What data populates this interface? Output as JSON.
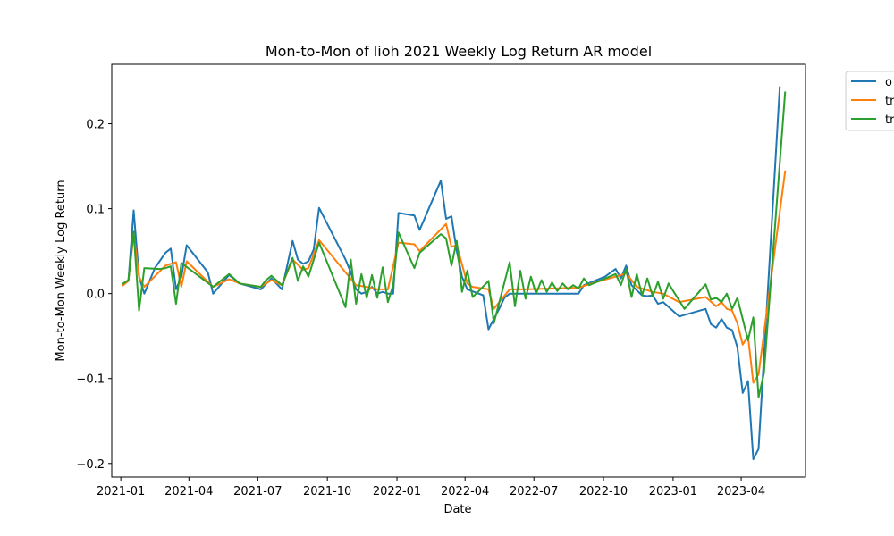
{
  "chart_data": {
    "type": "line",
    "title": "Mon-to-Mon of lioh 2021 Weekly Log Return AR model",
    "xlabel": "Date",
    "ylabel": "Mon-to-Mon Weekly Log Return",
    "x_ticks": [
      "2021-01",
      "2021-04",
      "2021-07",
      "2021-10",
      "2022-01",
      "2022-04",
      "2022-07",
      "2022-10",
      "2023-01",
      "2023-04"
    ],
    "y_ticks": [
      "−0.2",
      "−0.1",
      "0.0",
      "0.1",
      "0.2"
    ],
    "xlim": [
      "2020-12-20",
      "2023-06-25"
    ],
    "ylim": [
      -0.216,
      0.27
    ],
    "grid": false,
    "legend_position": "outside-top-right",
    "series": [
      {
        "name": "o",
        "color": "#1f77b4",
        "points": [
          [
            "2021-01-04",
            0.01
          ],
          [
            "2021-01-11",
            0.015
          ],
          [
            "2021-01-18",
            0.098
          ],
          [
            "2021-01-25",
            0.02
          ],
          [
            "2021-02-01",
            0.0
          ],
          [
            "2021-02-15",
            0.03
          ],
          [
            "2021-03-01",
            0.048
          ],
          [
            "2021-03-08",
            0.053
          ],
          [
            "2021-03-15",
            0.005
          ],
          [
            "2021-03-22",
            0.02
          ],
          [
            "2021-03-29",
            0.057
          ],
          [
            "2021-04-26",
            0.025
          ],
          [
            "2021-05-03",
            0.0
          ],
          [
            "2021-05-24",
            0.022
          ],
          [
            "2021-06-07",
            0.012
          ],
          [
            "2021-07-05",
            0.005
          ],
          [
            "2021-07-19",
            0.018
          ],
          [
            "2021-08-02",
            0.005
          ],
          [
            "2021-08-16",
            0.062
          ],
          [
            "2021-08-23",
            0.04
          ],
          [
            "2021-08-30",
            0.035
          ],
          [
            "2021-09-06",
            0.038
          ],
          [
            "2021-09-13",
            0.052
          ],
          [
            "2021-09-20",
            0.101
          ],
          [
            "2021-10-25",
            0.04
          ],
          [
            "2021-11-01",
            0.025
          ],
          [
            "2021-11-08",
            0.005
          ],
          [
            "2021-11-15",
            0.0
          ],
          [
            "2021-11-22",
            0.002
          ],
          [
            "2021-11-29",
            0.008
          ],
          [
            "2021-12-06",
            0.0
          ],
          [
            "2021-12-13",
            0.002
          ],
          [
            "2021-12-20",
            0.0
          ],
          [
            "2021-12-27",
            0.0
          ],
          [
            "2022-01-03",
            0.095
          ],
          [
            "2022-01-24",
            0.092
          ],
          [
            "2022-01-31",
            0.075
          ],
          [
            "2022-02-28",
            0.133
          ],
          [
            "2022-03-07",
            0.088
          ],
          [
            "2022-03-14",
            0.091
          ],
          [
            "2022-03-21",
            0.05
          ],
          [
            "2022-03-28",
            0.02
          ],
          [
            "2022-04-04",
            0.005
          ],
          [
            "2022-04-25",
            -0.002
          ],
          [
            "2022-05-02",
            -0.042
          ],
          [
            "2022-05-16",
            -0.018
          ],
          [
            "2022-05-23",
            -0.005
          ],
          [
            "2022-05-30",
            0.0
          ],
          [
            "2022-06-13",
            0.0
          ],
          [
            "2022-08-29",
            0.0
          ],
          [
            "2022-09-05",
            0.01
          ],
          [
            "2022-09-19",
            0.015
          ],
          [
            "2022-10-03",
            0.02
          ],
          [
            "2022-10-17",
            0.029
          ],
          [
            "2022-10-24",
            0.018
          ],
          [
            "2022-10-31",
            0.033
          ],
          [
            "2022-11-07",
            0.01
          ],
          [
            "2022-11-21",
            -0.002
          ],
          [
            "2022-11-28",
            -0.003
          ],
          [
            "2022-12-05",
            -0.002
          ],
          [
            "2022-12-12",
            -0.012
          ],
          [
            "2022-12-19",
            -0.01
          ],
          [
            "2023-01-09",
            -0.027
          ],
          [
            "2023-02-13",
            -0.018
          ],
          [
            "2023-02-20",
            -0.036
          ],
          [
            "2023-02-27",
            -0.04
          ],
          [
            "2023-03-06",
            -0.03
          ],
          [
            "2023-03-13",
            -0.04
          ],
          [
            "2023-03-20",
            -0.043
          ],
          [
            "2023-03-27",
            -0.063
          ],
          [
            "2023-04-03",
            -0.117
          ],
          [
            "2023-04-10",
            -0.103
          ],
          [
            "2023-04-17",
            -0.195
          ],
          [
            "2023-04-24",
            -0.183
          ],
          [
            "2023-05-22",
            0.243
          ]
        ]
      },
      {
        "name": "tr",
        "color": "#ff7f0e",
        "points": [
          [
            "2021-01-04",
            0.01
          ],
          [
            "2021-01-11",
            0.015
          ],
          [
            "2021-01-18",
            0.07
          ],
          [
            "2021-01-25",
            0.02
          ],
          [
            "2021-02-01",
            0.008
          ],
          [
            "2021-03-01",
            0.033
          ],
          [
            "2021-03-15",
            0.037
          ],
          [
            "2021-03-22",
            0.008
          ],
          [
            "2021-03-29",
            0.038
          ],
          [
            "2021-05-03",
            0.008
          ],
          [
            "2021-05-24",
            0.017
          ],
          [
            "2021-06-07",
            0.012
          ],
          [
            "2021-07-05",
            0.008
          ],
          [
            "2021-07-19",
            0.016
          ],
          [
            "2021-08-02",
            0.01
          ],
          [
            "2021-08-16",
            0.04
          ],
          [
            "2021-08-30",
            0.028
          ],
          [
            "2021-09-06",
            0.03
          ],
          [
            "2021-09-20",
            0.063
          ],
          [
            "2021-10-25",
            0.025
          ],
          [
            "2021-11-08",
            0.01
          ],
          [
            "2021-11-22",
            0.008
          ],
          [
            "2021-12-06",
            0.005
          ],
          [
            "2021-12-20",
            0.005
          ],
          [
            "2022-01-03",
            0.06
          ],
          [
            "2022-01-24",
            0.058
          ],
          [
            "2022-01-31",
            0.05
          ],
          [
            "2022-03-07",
            0.082
          ],
          [
            "2022-03-14",
            0.055
          ],
          [
            "2022-03-21",
            0.057
          ],
          [
            "2022-04-04",
            0.012
          ],
          [
            "2022-04-11",
            0.008
          ],
          [
            "2022-05-02",
            0.005
          ],
          [
            "2022-05-09",
            -0.018
          ],
          [
            "2022-05-30",
            0.005
          ],
          [
            "2022-06-20",
            0.005
          ],
          [
            "2022-08-29",
            0.007
          ],
          [
            "2022-09-19",
            0.013
          ],
          [
            "2022-10-17",
            0.02
          ],
          [
            "2022-10-31",
            0.024
          ],
          [
            "2022-11-14",
            0.008
          ],
          [
            "2022-12-05",
            0.002
          ],
          [
            "2022-12-19",
            0.0
          ],
          [
            "2023-01-09",
            -0.01
          ],
          [
            "2023-02-13",
            -0.004
          ],
          [
            "2023-02-27",
            -0.015
          ],
          [
            "2023-03-06",
            -0.01
          ],
          [
            "2023-03-13",
            -0.018
          ],
          [
            "2023-03-20",
            -0.02
          ],
          [
            "2023-03-27",
            -0.035
          ],
          [
            "2023-04-03",
            -0.06
          ],
          [
            "2023-04-10",
            -0.05
          ],
          [
            "2023-04-17",
            -0.105
          ],
          [
            "2023-04-24",
            -0.095
          ],
          [
            "2023-05-29",
            0.144
          ]
        ]
      },
      {
        "name": "tr",
        "color": "#2ca02c",
        "points": [
          [
            "2021-01-04",
            0.012
          ],
          [
            "2021-01-11",
            0.016
          ],
          [
            "2021-01-18",
            0.073
          ],
          [
            "2021-01-25",
            -0.02
          ],
          [
            "2021-02-01",
            0.03
          ],
          [
            "2021-02-22",
            0.029
          ],
          [
            "2021-03-01",
            0.03
          ],
          [
            "2021-03-08",
            0.032
          ],
          [
            "2021-03-15",
            -0.012
          ],
          [
            "2021-03-22",
            0.036
          ],
          [
            "2021-05-03",
            0.008
          ],
          [
            "2021-05-24",
            0.023
          ],
          [
            "2021-06-07",
            0.012
          ],
          [
            "2021-07-05",
            0.008
          ],
          [
            "2021-07-12",
            0.016
          ],
          [
            "2021-07-19",
            0.021
          ],
          [
            "2021-08-02",
            0.01
          ],
          [
            "2021-08-16",
            0.042
          ],
          [
            "2021-08-23",
            0.015
          ],
          [
            "2021-08-30",
            0.032
          ],
          [
            "2021-09-06",
            0.02
          ],
          [
            "2021-09-20",
            0.06
          ],
          [
            "2021-10-25",
            -0.016
          ],
          [
            "2021-11-01",
            0.04
          ],
          [
            "2021-11-08",
            -0.012
          ],
          [
            "2021-11-15",
            0.023
          ],
          [
            "2021-11-22",
            -0.005
          ],
          [
            "2021-11-29",
            0.022
          ],
          [
            "2021-12-06",
            -0.005
          ],
          [
            "2021-12-13",
            0.031
          ],
          [
            "2021-12-20",
            -0.01
          ],
          [
            "2021-12-27",
            0.01
          ],
          [
            "2022-01-03",
            0.072
          ],
          [
            "2022-01-24",
            0.03
          ],
          [
            "2022-01-31",
            0.048
          ],
          [
            "2022-02-28",
            0.07
          ],
          [
            "2022-03-07",
            0.065
          ],
          [
            "2022-03-14",
            0.033
          ],
          [
            "2022-03-21",
            0.062
          ],
          [
            "2022-03-28",
            0.002
          ],
          [
            "2022-04-04",
            0.027
          ],
          [
            "2022-04-11",
            -0.004
          ],
          [
            "2022-04-18",
            0.002
          ],
          [
            "2022-05-02",
            0.015
          ],
          [
            "2022-05-09",
            -0.035
          ],
          [
            "2022-05-30",
            0.037
          ],
          [
            "2022-06-06",
            -0.015
          ],
          [
            "2022-06-13",
            0.027
          ],
          [
            "2022-06-20",
            -0.006
          ],
          [
            "2022-06-27",
            0.02
          ],
          [
            "2022-07-04",
            0.0
          ],
          [
            "2022-07-11",
            0.016
          ],
          [
            "2022-07-18",
            0.002
          ],
          [
            "2022-07-25",
            0.013
          ],
          [
            "2022-08-01",
            0.003
          ],
          [
            "2022-08-08",
            0.012
          ],
          [
            "2022-08-15",
            0.005
          ],
          [
            "2022-08-22",
            0.01
          ],
          [
            "2022-08-29",
            0.006
          ],
          [
            "2022-09-05",
            0.018
          ],
          [
            "2022-09-12",
            0.01
          ],
          [
            "2022-10-17",
            0.023
          ],
          [
            "2022-10-24",
            0.01
          ],
          [
            "2022-10-31",
            0.029
          ],
          [
            "2022-11-07",
            -0.004
          ],
          [
            "2022-11-14",
            0.023
          ],
          [
            "2022-11-21",
            -0.002
          ],
          [
            "2022-11-28",
            0.018
          ],
          [
            "2022-12-05",
            -0.003
          ],
          [
            "2022-12-12",
            0.014
          ],
          [
            "2022-12-19",
            -0.006
          ],
          [
            "2022-12-26",
            0.012
          ],
          [
            "2023-01-16",
            -0.018
          ],
          [
            "2023-02-13",
            0.011
          ],
          [
            "2023-02-20",
            -0.007
          ],
          [
            "2023-02-27",
            -0.005
          ],
          [
            "2023-03-06",
            -0.01
          ],
          [
            "2023-03-13",
            0.0
          ],
          [
            "2023-03-20",
            -0.018
          ],
          [
            "2023-03-27",
            -0.005
          ],
          [
            "2023-04-03",
            -0.03
          ],
          [
            "2023-04-10",
            -0.055
          ],
          [
            "2023-04-17",
            -0.028
          ],
          [
            "2023-04-24",
            -0.122
          ],
          [
            "2023-05-01",
            -0.094
          ],
          [
            "2023-05-29",
            0.237
          ]
        ]
      }
    ]
  }
}
